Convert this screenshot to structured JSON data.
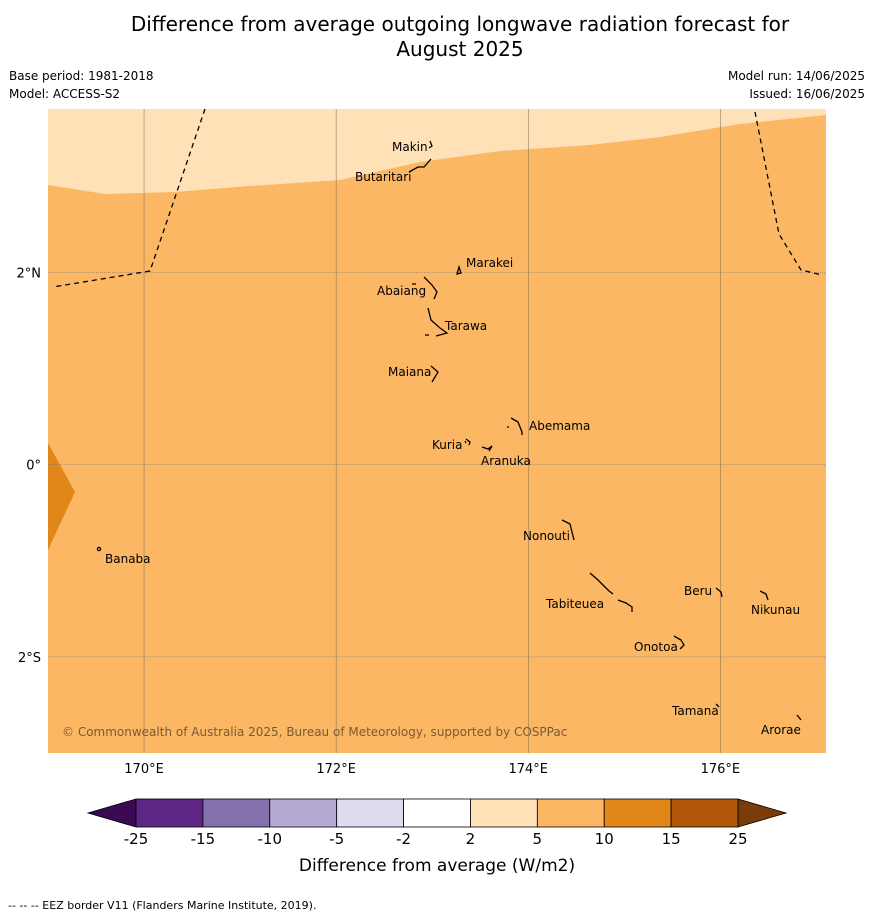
{
  "header": {
    "title_line1": "Difference from average outgoing longwave radiation forecast for",
    "title_line2": "August 2025",
    "base_period": "Base period: 1981-2018",
    "model": "Model: ACCESS-S2",
    "model_run": "Model run: 14/06/2025",
    "issued": "Issued: 16/06/2025"
  },
  "map": {
    "lon_range": [
      169,
      177.1
    ],
    "lat_range": [
      -3.0,
      3.7
    ],
    "lon_ticks": [
      {
        "value": 170,
        "label": "170°E"
      },
      {
        "value": 172,
        "label": "172°E"
      },
      {
        "value": 174,
        "label": "174°E"
      },
      {
        "value": 176,
        "label": "176°E"
      }
    ],
    "lat_ticks": [
      {
        "value": 2,
        "label": "2°N"
      },
      {
        "value": 0,
        "label": "0°"
      },
      {
        "value": -2,
        "label": "2°S"
      }
    ],
    "copyright": "© Commonwealth of Australia 2025, Bureau of Meteorology, supported by COSPPac",
    "places": [
      {
        "name": "Makin",
        "lon": 173.0,
        "lat": 3.35
      },
      {
        "name": "Butaritari",
        "lon": 172.8,
        "lat": 3.07
      },
      {
        "name": "Marakei",
        "lon": 173.3,
        "lat": 2.0
      },
      {
        "name": "Abaiang",
        "lon": 172.97,
        "lat": 1.83
      },
      {
        "name": "Tarawa",
        "lon": 173.05,
        "lat": 1.4
      },
      {
        "name": "Maiana",
        "lon": 173.0,
        "lat": 0.92
      },
      {
        "name": "Abemama",
        "lon": 173.9,
        "lat": 0.4
      },
      {
        "name": "Kuria",
        "lon": 173.4,
        "lat": 0.23
      },
      {
        "name": "Aranuka",
        "lon": 173.6,
        "lat": 0.17
      },
      {
        "name": "Banaba",
        "lon": 169.55,
        "lat": -0.87
      },
      {
        "name": "Nonouti",
        "lon": 174.4,
        "lat": -0.67
      },
      {
        "name": "Beru",
        "lon": 175.98,
        "lat": -1.33
      },
      {
        "name": "Nikunau",
        "lon": 176.45,
        "lat": -1.37
      },
      {
        "name": "Tabiteuea",
        "lon": 174.8,
        "lat": -1.35
      },
      {
        "name": "Onotoa",
        "lon": 175.57,
        "lat": -1.87
      },
      {
        "name": "Tamana",
        "lon": 175.98,
        "lat": -2.5
      },
      {
        "name": "Arorae",
        "lon": 176.8,
        "lat": -2.65
      }
    ]
  },
  "colorbar": {
    "colors": [
      "#5e2785",
      "#8371ae",
      "#b3a9d3",
      "#dcdcee",
      "#ffffff",
      "#fee1b6",
      "#fcb764",
      "#e18618",
      "#b15707"
    ],
    "low_extend_color": "#3c0a55",
    "high_extend_color": "#7b3c0a",
    "labels": [
      "-25",
      "-15",
      "-10",
      "-5",
      "-2",
      "2",
      "5",
      "10",
      "15",
      "25"
    ],
    "title": "Difference from average (W/m2)"
  },
  "footnote": "-- -- -- EEZ border V11 (Flanders Marine Institute, 2019)."
}
